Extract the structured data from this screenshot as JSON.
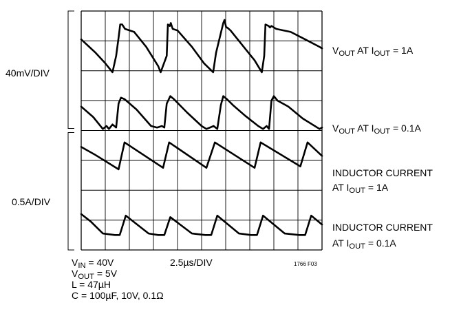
{
  "chart_data": {
    "type": "line",
    "title": "",
    "xlabel": "",
    "ylabel": "",
    "grid": true,
    "grid_divisions": {
      "horizontal": 10,
      "vertical": 8
    },
    "x_scale_label": "2.5µs/DIV",
    "y_scale_labels": [
      {
        "label": "40mV/DIV",
        "applies_to": [
          "vout_1a",
          "vout_01a"
        ]
      },
      {
        "label": "0.5A/DIV",
        "applies_to": [
          "il_1a",
          "il_01a"
        ]
      }
    ],
    "units": {
      "x": "DIV",
      "y": "DIV"
    },
    "xlim": [
      0,
      10
    ],
    "ylim": [
      0,
      8
    ],
    "series": [
      {
        "id": "vout_1a",
        "label_parts": [
          "V",
          "OUT",
          " AT I",
          "OUT",
          " = 1A"
        ],
        "x": [
          0,
          0.6,
          1.0,
          1.3,
          1.45,
          1.55,
          1.62,
          1.7,
          1.82,
          2.2,
          2.7,
          3.2,
          3.3,
          3.55,
          3.6,
          3.68,
          3.72,
          3.8,
          4.0,
          4.6,
          5.1,
          5.48,
          5.6,
          5.9,
          5.95,
          6.02,
          6.06,
          6.2,
          6.7,
          7.2,
          7.5,
          7.6,
          7.65,
          7.78,
          7.84,
          7.9,
          8.1,
          8.7,
          9.3,
          9.9,
          10
        ],
        "y": [
          7.05,
          6.6,
          6.25,
          5.95,
          6.5,
          7.1,
          7.55,
          7.55,
          7.4,
          7.3,
          6.8,
          6.15,
          5.95,
          6.5,
          7.55,
          7.5,
          7.6,
          7.4,
          7.35,
          6.8,
          6.25,
          5.95,
          6.6,
          7.6,
          7.7,
          7.45,
          7.45,
          7.35,
          6.85,
          6.35,
          5.95,
          6.5,
          7.55,
          7.5,
          7.45,
          7.5,
          7.4,
          7.3,
          7.05,
          6.8,
          6.75
        ]
      },
      {
        "id": "vout_01a",
        "label_parts": [
          "V",
          "OUT",
          " AT I",
          "OUT",
          " = 0.1A"
        ],
        "x": [
          0,
          0.5,
          0.9,
          1.05,
          1.15,
          1.3,
          1.45,
          1.55,
          1.65,
          1.8,
          2.3,
          2.9,
          3.15,
          3.35,
          3.45,
          3.55,
          3.7,
          3.85,
          4.4,
          5.0,
          5.2,
          5.5,
          5.65,
          5.8,
          5.9,
          6.05,
          6.3,
          6.8,
          7.35,
          7.55,
          7.7,
          7.8,
          7.9,
          8.0,
          8.15,
          8.6,
          9.2,
          9.9,
          10
        ],
        "y": [
          4.8,
          4.45,
          4.05,
          4.15,
          4.05,
          4.2,
          4.1,
          4.9,
          5.1,
          5.05,
          4.7,
          4.15,
          4.1,
          4.15,
          4.1,
          4.9,
          5.15,
          5.05,
          4.6,
          4.15,
          4.05,
          4.15,
          4.05,
          4.85,
          5.15,
          5.05,
          4.85,
          4.5,
          4.15,
          4.05,
          4.15,
          4.05,
          5.0,
          5.15,
          5.0,
          4.8,
          4.4,
          4.05,
          4.1
        ]
      },
      {
        "id": "il_1a",
        "label_parts": [
          "INDUCTOR CURRENT",
          "",
          "AT I",
          "OUT",
          " = 1A"
        ],
        "x": [
          0,
          0.55,
          1.55,
          1.8,
          3.4,
          3.65,
          5.2,
          5.55,
          7.2,
          7.45,
          9.1,
          9.4,
          10
        ],
        "y": [
          3.45,
          3.2,
          2.7,
          3.6,
          2.75,
          3.6,
          2.75,
          3.6,
          2.75,
          3.6,
          2.8,
          3.6,
          3.15
        ]
      },
      {
        "id": "il_01a",
        "label_parts": [
          "INDUCTOR CURRENT",
          "",
          "AT I",
          "OUT",
          " = 0.1A"
        ],
        "x": [
          0,
          0.4,
          0.9,
          1.4,
          1.6,
          1.85,
          2.8,
          3.2,
          3.45,
          3.7,
          4.6,
          5.15,
          5.4,
          5.65,
          6.55,
          7.05,
          7.3,
          7.55,
          8.45,
          9.05,
          9.3,
          9.55,
          10
        ],
        "y": [
          1.2,
          0.95,
          0.55,
          0.5,
          0.5,
          1.15,
          0.55,
          0.5,
          0.5,
          1.1,
          0.55,
          0.5,
          0.5,
          1.15,
          0.55,
          0.5,
          0.5,
          1.15,
          0.55,
          0.5,
          0.5,
          1.15,
          0.85
        ]
      }
    ],
    "conditions": [
      [
        "V",
        "IN",
        " = 40V"
      ],
      [
        "V",
        "OUT",
        " = 5V"
      ],
      [
        "L = 47µH"
      ],
      [
        "C = 100µF, 10V, 0.1Ω"
      ]
    ],
    "figure_id": "1766 F03"
  }
}
